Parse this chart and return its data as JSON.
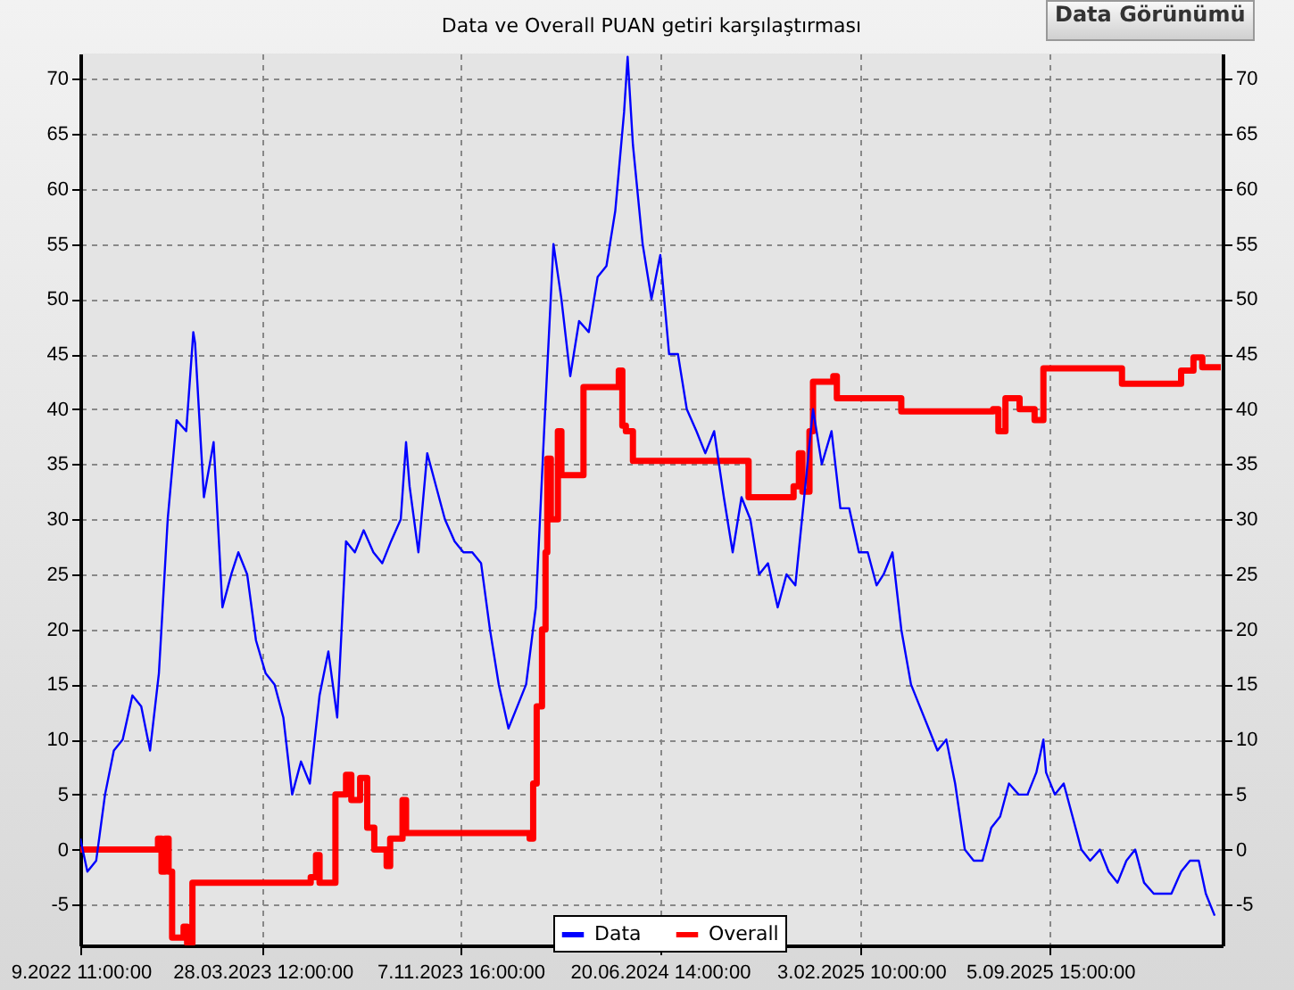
{
  "chart_data": {
    "type": "line",
    "title": "Data ve Overall PUAN getiri karşılaştırması",
    "annotations": [
      "Data Görünümü"
    ],
    "xlim": [
      "2022-09-03T00:00",
      "2026-03-20T00:00"
    ],
    "xticks": [
      {
        "value": "2022-09-03T11:00",
        "label": "9.2022 11:00:00"
      },
      {
        "value": "2023-03-28T12:00",
        "label": "28.03.2023 12:00:00"
      },
      {
        "value": "2023-11-07T16:00",
        "label": "7.11.2023 16:00:00"
      },
      {
        "value": "2024-06-20T14:00",
        "label": "20.06.2024 14:00:00"
      },
      {
        "value": "2025-02-03T10:00",
        "label": "3.02.2025 10:00:00"
      },
      {
        "value": "2025-09-05T15:00",
        "label": "5.09.2025 15:00:00"
      }
    ],
    "ylim": [
      -8.7,
      72.3
    ],
    "yticks": [
      -5,
      0,
      5,
      10,
      15,
      20,
      25,
      30,
      35,
      40,
      45,
      50,
      55,
      60,
      65,
      70
    ],
    "y2lim": [
      -8.7,
      72.3
    ],
    "y2ticks": [
      -5,
      0,
      5,
      10,
      15,
      20,
      25,
      30,
      35,
      40,
      45,
      50,
      55,
      60,
      65,
      70
    ],
    "grid": true,
    "legend": "bottom",
    "line_style": "solid",
    "series": [
      {
        "name": "Data",
        "type": "line",
        "color": "#0000ff",
        "x": [
          "2022-09-03",
          "2022-09-11",
          "2022-09-21",
          "2022-10-01",
          "2022-10-11",
          "2022-10-21",
          "2022-11-01",
          "2022-11-11",
          "2022-11-21",
          "2022-12-01",
          "2022-12-11",
          "2022-12-21",
          "2023-01-01",
          "2023-01-09",
          "2023-01-11",
          "2023-01-21",
          "2023-02-01",
          "2023-02-11",
          "2023-02-21",
          "2023-03-01",
          "2023-03-11",
          "2023-03-21",
          "2023-04-01",
          "2023-04-11",
          "2023-04-21",
          "2023-05-01",
          "2023-05-11",
          "2023-05-21",
          "2023-06-01",
          "2023-06-11",
          "2023-06-21",
          "2023-07-01",
          "2023-07-11",
          "2023-07-21",
          "2023-08-01",
          "2023-08-11",
          "2023-08-21",
          "2023-09-01",
          "2023-09-07",
          "2023-09-11",
          "2023-09-21",
          "2023-10-01",
          "2023-10-11",
          "2023-10-21",
          "2023-11-01",
          "2023-11-11",
          "2023-11-21",
          "2023-12-01",
          "2023-12-11",
          "2023-12-21",
          "2024-01-01",
          "2024-01-11",
          "2024-01-21",
          "2024-02-01",
          "2024-02-11",
          "2024-02-21",
          "2024-03-01",
          "2024-03-11",
          "2024-03-21",
          "2024-04-01",
          "2024-04-11",
          "2024-04-21",
          "2024-05-01",
          "2024-05-11",
          "2024-05-15",
          "2024-05-21",
          "2024-06-01",
          "2024-06-11",
          "2024-06-21",
          "2024-07-01",
          "2024-07-11",
          "2024-07-21",
          "2024-08-01",
          "2024-08-11",
          "2024-08-21",
          "2024-09-01",
          "2024-09-11",
          "2024-09-21",
          "2024-10-01",
          "2024-10-11",
          "2024-10-21",
          "2024-11-01",
          "2024-11-11",
          "2024-11-21",
          "2024-12-01",
          "2024-12-11",
          "2024-12-21",
          "2025-01-01",
          "2025-01-11",
          "2025-01-21",
          "2025-02-01",
          "2025-02-11",
          "2025-02-21",
          "2025-03-01",
          "2025-03-11",
          "2025-03-21",
          "2025-04-01",
          "2025-04-11",
          "2025-04-21",
          "2025-05-01",
          "2025-05-11",
          "2025-05-21",
          "2025-06-01",
          "2025-06-11",
          "2025-06-21",
          "2025-07-01",
          "2025-07-11",
          "2025-07-21",
          "2025-08-01",
          "2025-08-11",
          "2025-08-21",
          "2025-08-29",
          "2025-09-01",
          "2025-09-11",
          "2025-09-21",
          "2025-10-01",
          "2025-10-11",
          "2025-10-21",
          "2025-11-01",
          "2025-11-11",
          "2025-11-21",
          "2025-12-01",
          "2025-12-11",
          "2025-12-21",
          "2026-01-01",
          "2026-01-11",
          "2026-01-21",
          "2026-02-01",
          "2026-02-11",
          "2026-02-21",
          "2026-03-01",
          "2026-03-11"
        ],
        "values": [
          1,
          -2,
          -1,
          5,
          9,
          10,
          14,
          13,
          9,
          16,
          30,
          39,
          38,
          47,
          46,
          32,
          37,
          22,
          25,
          27,
          25,
          19,
          16,
          15,
          12,
          5,
          8,
          6,
          14,
          18,
          12,
          28,
          27,
          29,
          27,
          26,
          28,
          30,
          37,
          33,
          27,
          36,
          33,
          30,
          28,
          27,
          27,
          26,
          20,
          15,
          11,
          13,
          15,
          22,
          39,
          55,
          50,
          43,
          48,
          47,
          52,
          53,
          58,
          67,
          72,
          64,
          55,
          50,
          54,
          45,
          45,
          40,
          38,
          36,
          38,
          32,
          27,
          32,
          30,
          25,
          26,
          22,
          25,
          24,
          32,
          40,
          35,
          38,
          31,
          31,
          27,
          27,
          24,
          25,
          27,
          20,
          15,
          13,
          11,
          9,
          10,
          6,
          0,
          -1,
          -1,
          2,
          3,
          6,
          5,
          5,
          7,
          10,
          7,
          5,
          6,
          3,
          0,
          -1,
          0,
          -2,
          -3,
          -1,
          0,
          -3,
          -4,
          -4,
          -4,
          -2,
          -1,
          -1,
          -4,
          -6
        ]
      },
      {
        "name": "Overall",
        "type": "step",
        "color": "#ff0000",
        "x": [
          "2022-09-03",
          "2022-11-30",
          "2022-12-04",
          "2022-12-08",
          "2022-12-12",
          "2022-12-16",
          "2022-12-18",
          "2022-12-29",
          "2023-01-02",
          "2023-01-08",
          "2023-05-22",
          "2023-05-28",
          "2023-06-01",
          "2023-06-19",
          "2023-07-01",
          "2023-07-07",
          "2023-07-17",
          "2023-07-25",
          "2023-08-02",
          "2023-08-16",
          "2023-08-20",
          "2023-09-03",
          "2023-09-07",
          "2024-01-25",
          "2024-01-29",
          "2024-02-02",
          "2024-02-08",
          "2024-02-12",
          "2024-02-14",
          "2024-02-18",
          "2024-02-26",
          "2024-03-01",
          "2024-03-26",
          "2024-05-05",
          "2024-05-09",
          "2024-05-13",
          "2024-05-21",
          "2024-09-29",
          "2024-11-19",
          "2024-11-25",
          "2024-11-29",
          "2024-12-07",
          "2024-12-11",
          "2025-01-03",
          "2025-01-07",
          "2025-03-21",
          "2025-07-03",
          "2025-07-09",
          "2025-07-17",
          "2025-08-02",
          "2025-08-19",
          "2025-08-29",
          "2025-11-26",
          "2026-02-01",
          "2026-02-15",
          "2026-02-25",
          "2026-03-18"
        ],
        "values": [
          0,
          1,
          -2,
          1,
          -2,
          -8,
          -8,
          -7,
          -8.5,
          -3,
          -2.5,
          -0.5,
          -3,
          5,
          6.8,
          4.5,
          6.5,
          2,
          0,
          -1.5,
          1,
          4.5,
          1.5,
          1,
          6,
          13,
          20,
          27,
          35.5,
          30,
          38,
          34,
          42,
          43.5,
          38.5,
          38,
          35.3,
          32,
          33,
          36,
          32.5,
          38,
          42.5,
          43,
          41,
          39.8,
          40,
          38,
          41,
          40,
          39,
          43.7,
          42.3,
          43.5,
          44.7,
          43.8,
          43.8
        ]
      }
    ]
  }
}
